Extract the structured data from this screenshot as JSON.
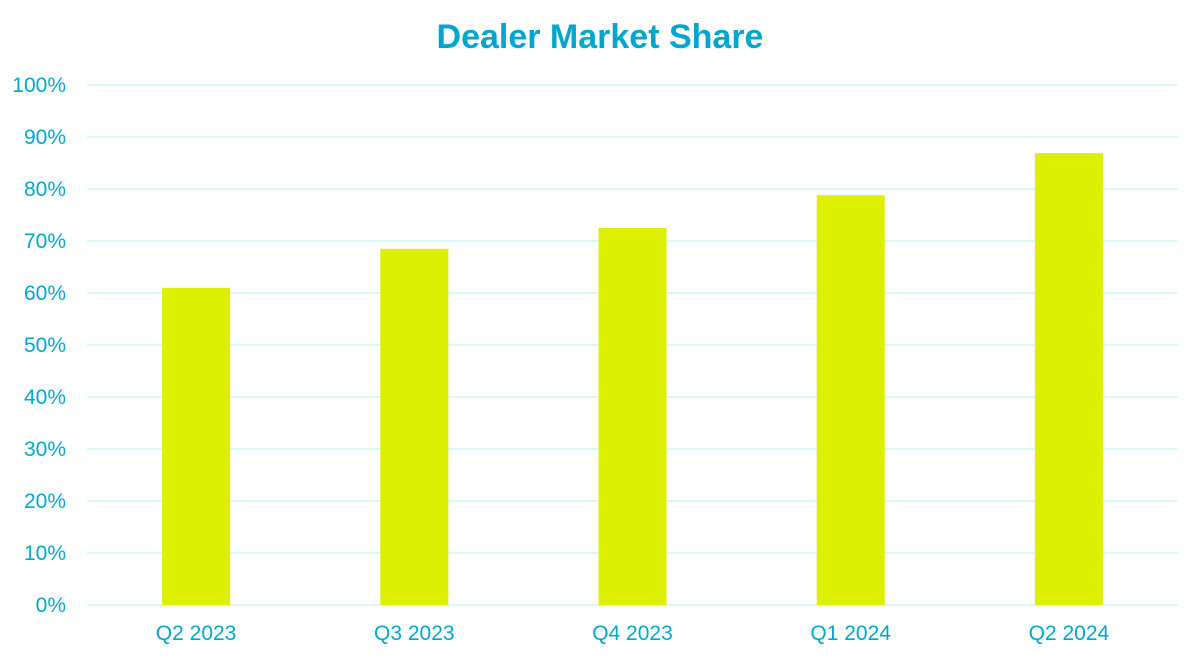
{
  "chart_data": {
    "type": "bar",
    "title": "Dealer Market Share",
    "xlabel": "",
    "ylabel": "",
    "categories": [
      "Q2 2023",
      "Q3 2023",
      "Q4 2023",
      "Q1 2024",
      "Q2 2024"
    ],
    "values": [
      61,
      68.5,
      72.5,
      78.8,
      86.9
    ],
    "ylim": [
      0,
      100
    ],
    "yticks": [
      "0%",
      "10%",
      "20%",
      "30%",
      "40%",
      "50%",
      "60%",
      "70%",
      "80%",
      "90%",
      "100%"
    ],
    "grid": true,
    "legend": "none",
    "colors": {
      "bar": "#DDF000",
      "text": "#00A6CE",
      "grid": "#C8F2F8"
    }
  }
}
